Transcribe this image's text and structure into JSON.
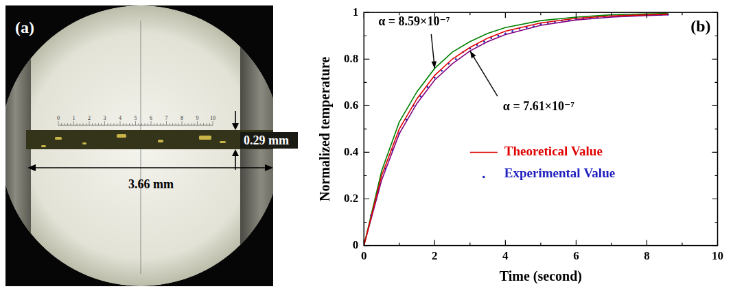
{
  "image_panel": {
    "label": "(a)",
    "length_label": "3.66 mm",
    "thickness_label": "0.29 mm",
    "ruler_labels": [
      0,
      1,
      2,
      3,
      4,
      5,
      6,
      7,
      8,
      9,
      10
    ]
  },
  "chart_data": {
    "type": "line",
    "panel_label": "(b)",
    "x_label": "Time (second)",
    "y_label": "Normalized temperature",
    "xlim": [
      0,
      10
    ],
    "xticks": [
      0,
      2,
      4,
      6,
      8,
      10
    ],
    "ylim": [
      0,
      1
    ],
    "yticks": [
      0,
      0.2,
      0.4,
      0.6,
      0.8,
      1
    ],
    "grid": false,
    "legend": "right",
    "series": [
      {
        "name": "Theoretical Value",
        "color": "#e00000",
        "line_style": "solid",
        "marker": "none",
        "x": [
          0,
          0.5,
          1,
          1.5,
          2,
          2.5,
          3,
          3.5,
          4,
          5,
          6,
          7,
          8,
          8.6
        ],
        "values": [
          0,
          0.3,
          0.5,
          0.63,
          0.73,
          0.8,
          0.85,
          0.89,
          0.92,
          0.955,
          0.975,
          0.985,
          0.99,
          0.993
        ]
      },
      {
        "name": "Experimental Value",
        "color": "#2020c0",
        "line_style": "none",
        "marker": "dot",
        "x": [
          0,
          0.2,
          0.4,
          0.6,
          0.8,
          1,
          1.2,
          1.4,
          1.6,
          1.8,
          2,
          2.2,
          2.4,
          2.6,
          2.8,
          3,
          3.2,
          3.4,
          3.6,
          3.8,
          4,
          4.2,
          4.4,
          4.6,
          4.8,
          5,
          5.2,
          5.4,
          5.6,
          5.8,
          6,
          6.2,
          6.4,
          6.6,
          6.8,
          7,
          7.2,
          7.4,
          7.6,
          7.8,
          8,
          8.2,
          8.4,
          8.6
        ],
        "values": [
          0,
          0.13,
          0.24,
          0.33,
          0.41,
          0.48,
          0.54,
          0.6,
          0.64,
          0.68,
          0.72,
          0.75,
          0.78,
          0.8,
          0.83,
          0.845,
          0.86,
          0.875,
          0.89,
          0.9,
          0.91,
          0.92,
          0.93,
          0.935,
          0.94,
          0.95,
          0.955,
          0.96,
          0.965,
          0.968,
          0.972,
          0.975,
          0.977,
          0.98,
          0.982,
          0.984,
          0.985,
          0.986,
          0.987,
          0.988,
          0.989,
          0.99,
          0.99,
          0.991
        ]
      },
      {
        "color": "#008000",
        "line_style": "solid",
        "marker": "none",
        "annotation": "α = 8.59×10⁻⁷",
        "x": [
          0,
          0.5,
          1,
          1.5,
          2,
          2.5,
          3,
          3.5,
          4,
          5,
          6,
          7,
          8,
          8.6
        ],
        "values": [
          0,
          0.32,
          0.53,
          0.66,
          0.76,
          0.83,
          0.875,
          0.91,
          0.935,
          0.965,
          0.98,
          0.99,
          0.994,
          0.996
        ]
      },
      {
        "color": "#800080",
        "line_style": "solid",
        "marker": "none",
        "annotation": "α = 7.61×10⁻⁷",
        "x": [
          0,
          0.5,
          1,
          1.5,
          2,
          2.5,
          3,
          3.5,
          4,
          5,
          6,
          7,
          8,
          8.6
        ],
        "values": [
          0,
          0.28,
          0.48,
          0.61,
          0.71,
          0.78,
          0.835,
          0.875,
          0.905,
          0.945,
          0.968,
          0.98,
          0.987,
          0.99
        ]
      }
    ]
  }
}
